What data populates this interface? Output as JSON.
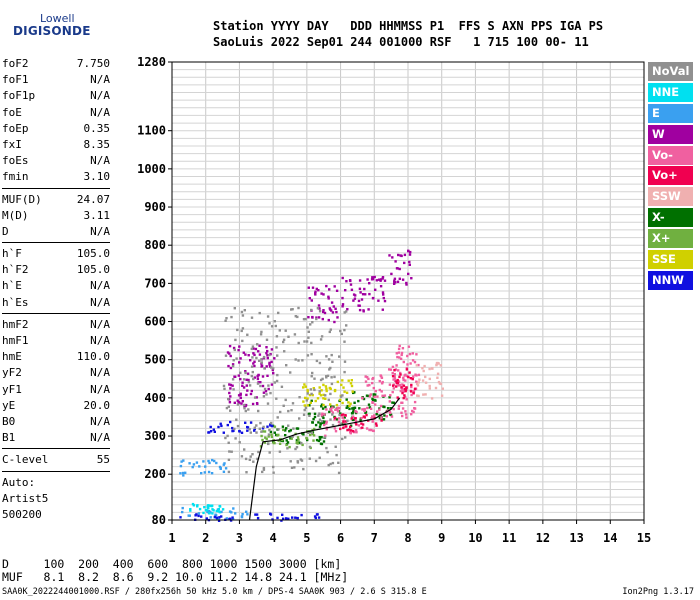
{
  "logo": {
    "line1": "Lowell",
    "line2": "DIGISONDE"
  },
  "header": {
    "line1": "Station YYYY DAY   DDD HHMMSS P1  FFS S AXN PPS IGA PS",
    "line2": "SaoLuis 2022 Sep01 244 001000 RSF   1 715 100 00- 11"
  },
  "left_panel": {
    "group1": [
      {
        "label": "foF2",
        "value": "7.750"
      },
      {
        "label": "foF1",
        "value": "N/A"
      },
      {
        "label": "foF1p",
        "value": "N/A"
      },
      {
        "label": "foE",
        "value": "N/A"
      },
      {
        "label": "foEp",
        "value": "0.35"
      },
      {
        "label": "fxI",
        "value": "8.35"
      },
      {
        "label": "foEs",
        "value": "N/A"
      },
      {
        "label": "fmin",
        "value": "3.10"
      }
    ],
    "group2": [
      {
        "label": "MUF(D)",
        "value": "24.07"
      },
      {
        "label": "M(D)",
        "value": "3.11"
      },
      {
        "label": "D",
        "value": "N/A"
      }
    ],
    "group3": [
      {
        "label": "h`F",
        "value": "105.0"
      },
      {
        "label": "h`F2",
        "value": "105.0"
      },
      {
        "label": "h`E",
        "value": "N/A"
      },
      {
        "label": "h`Es",
        "value": "N/A"
      }
    ],
    "group4": [
      {
        "label": "hmF2",
        "value": "N/A"
      },
      {
        "label": "hmF1",
        "value": "N/A"
      },
      {
        "label": "hmE",
        "value": "110.0"
      },
      {
        "label": "yF2",
        "value": "N/A"
      },
      {
        "label": "yF1",
        "value": "N/A"
      },
      {
        "label": "yE",
        "value": "20.0"
      },
      {
        "label": "B0",
        "value": "N/A"
      },
      {
        "label": "B1",
        "value": "N/A"
      }
    ],
    "group5": [
      {
        "label": "C-level",
        "value": "55"
      }
    ],
    "auto_lines": [
      "Auto:",
      "Artist5",
      "500200"
    ]
  },
  "legend": [
    {
      "label": "NoVal",
      "color": "#909090"
    },
    {
      "label": "NNE",
      "color": "#00e0f0"
    },
    {
      "label": "E",
      "color": "#3aa0f0"
    },
    {
      "label": "W",
      "color": "#a000a0"
    },
    {
      "label": "Vo-",
      "color": "#f060a0"
    },
    {
      "label": "Vo+",
      "color": "#f00050"
    },
    {
      "label": "SSW",
      "color": "#f0b0b0"
    },
    {
      "label": "X-",
      "color": "#007000"
    },
    {
      "label": "X+",
      "color": "#70b040"
    },
    {
      "label": "SSE",
      "color": "#d0d000"
    },
    {
      "label": "NNW",
      "color": "#1010e0"
    }
  ],
  "footer": {
    "line1": "D     100  200  400  600  800 1000 1500 3000 [km]",
    "line2": "MUF   8.1  8.2  8.6  9.2 10.0 11.2 14.8 24.1 [MHz]",
    "bottom": "SAA0K_2022244001000.RSF / 280fx256h 50 kHz 5.0 km / DPS-4 SAA0K 903 / 2.6 S 315.8 E",
    "version": "Ion2Png 1.3.17"
  },
  "chart_data": {
    "type": "scatter",
    "xlim": [
      1,
      15
    ],
    "ylim": [
      80,
      1280
    ],
    "x_ticks": [
      "1",
      "2",
      "3",
      "4",
      "5",
      "6",
      "7",
      "8",
      "9",
      "10",
      "11",
      "12",
      "13",
      "14",
      "15"
    ],
    "y_ticks": [
      "80",
      "200",
      "300",
      "400",
      "500",
      "600",
      "700",
      "800",
      "900",
      "1000",
      "1100",
      "1280"
    ],
    "y_tick_values": [
      80,
      200,
      300,
      400,
      500,
      600,
      700,
      800,
      900,
      1000,
      1100,
      1280
    ],
    "grid": true,
    "legend_position": "right",
    "series": [
      {
        "name": "X-",
        "color": "#007000",
        "regions": [
          [
            3.8,
            5.5,
            280,
            340
          ],
          [
            5.0,
            6.5,
            330,
            400
          ],
          [
            6.3,
            7.6,
            345,
            420
          ]
        ]
      },
      {
        "name": "SSE",
        "color": "#d0d000",
        "regions": [
          [
            4.8,
            6.4,
            380,
            450
          ]
        ]
      },
      {
        "name": "X+",
        "color": "#70b040",
        "regions": [
          [
            3.6,
            5.2,
            270,
            330
          ]
        ]
      },
      {
        "name": "Vo-",
        "color": "#f060a0",
        "regions": [
          [
            5.4,
            7.0,
            300,
            380
          ],
          [
            6.6,
            8.2,
            350,
            470
          ],
          [
            7.4,
            8.3,
            420,
            540
          ]
        ]
      },
      {
        "name": "Vo+",
        "color": "#f00050",
        "regions": [
          [
            5.8,
            7.2,
            315,
            360
          ],
          [
            7.5,
            8.2,
            400,
            480
          ]
        ]
      },
      {
        "name": "W",
        "color": "#a000a0",
        "regions": [
          [
            6.0,
            7.3,
            630,
            720
          ],
          [
            7.4,
            8.1,
            700,
            790
          ],
          [
            2.6,
            4.0,
            380,
            540
          ],
          [
            5.0,
            5.9,
            600,
            700
          ]
        ]
      },
      {
        "name": "E",
        "color": "#3aa0f0",
        "regions": [
          [
            1.2,
            3.2,
            85,
            115
          ],
          [
            1.2,
            2.6,
            200,
            240
          ]
        ]
      },
      {
        "name": "NNW",
        "color": "#1010e0",
        "regions": [
          [
            1.2,
            5.5,
            80,
            100
          ],
          [
            2.0,
            4.0,
            310,
            340
          ]
        ]
      },
      {
        "name": "NNE",
        "color": "#00e0f0",
        "regions": [
          [
            1.5,
            2.5,
            100,
            125
          ]
        ]
      },
      {
        "name": "NoVal",
        "color": "#909090",
        "regions": [
          [
            2.5,
            6.2,
            200,
            640
          ]
        ]
      },
      {
        "name": "SSW",
        "color": "#f0b0b0",
        "regions": [
          [
            8.2,
            9.0,
            400,
            500
          ]
        ]
      }
    ],
    "trace": {
      "color": "#000000",
      "points": [
        [
          3.3,
          80
        ],
        [
          3.5,
          220
        ],
        [
          3.7,
          285
        ],
        [
          4.2,
          290
        ],
        [
          4.7,
          305
        ],
        [
          5.2,
          315
        ],
        [
          5.8,
          325
        ],
        [
          6.4,
          335
        ],
        [
          7.0,
          345
        ],
        [
          7.5,
          370
        ],
        [
          7.75,
          400
        ]
      ]
    }
  }
}
